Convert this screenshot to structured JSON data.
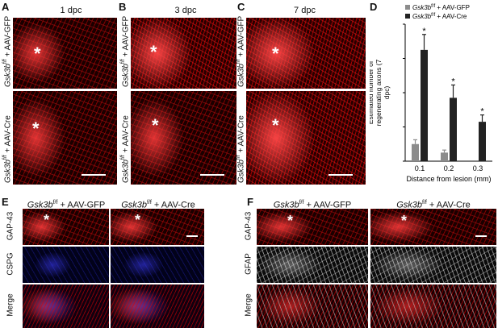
{
  "panels": {
    "A": {
      "letter": "A",
      "title": "1 dpc"
    },
    "B": {
      "letter": "B",
      "title": "3 dpc"
    },
    "C": {
      "letter": "C",
      "title": "7 dpc"
    },
    "D": {
      "letter": "D"
    },
    "E": {
      "letter": "E"
    },
    "F": {
      "letter": "F"
    }
  },
  "labels": {
    "gene": "Gsk3b",
    "sup": "f/f",
    "gfp": " + AAV-GFP",
    "cre": " + AAV-Cre",
    "gap43": "GAP-43",
    "cspg": "CSPG",
    "gfap": "GFAP",
    "merge": "Merge",
    "asterisk": "*"
  },
  "colors": {
    "gfp_bar": "#8c8c8c",
    "cre_bar": "#222222",
    "tissue_red": "#e01010",
    "cspg_blue": "#2020d0"
  },
  "chart_data": {
    "type": "bar",
    "categories": [
      "0.1",
      "0.2",
      "0.3"
    ],
    "series": [
      {
        "name": "Gsk3bf/f + AAV-GFP",
        "values": [
          100,
          50,
          0
        ],
        "errors": [
          25,
          15,
          0
        ]
      },
      {
        "name": "Gsk3bf/f + AAV-Cre",
        "values": [
          650,
          370,
          230
        ],
        "errors": [
          90,
          75,
          40
        ]
      }
    ],
    "significance": [
      "*",
      "*",
      "*"
    ],
    "xlabel": "Distance from lesion (mm)",
    "ylabel": "Estimated number of regenerating axons (7 dpc)",
    "ylim": [
      0,
      800
    ],
    "yticks": [
      0,
      200,
      400,
      600,
      800
    ],
    "legend": {
      "position": "top",
      "entries": [
        {
          "gene": "Gsk3b",
          "sup": "f/f",
          "rest": " + AAV-GFP"
        },
        {
          "gene": "Gsk3b",
          "sup": "f/f",
          "rest": " + AAV-Cre"
        }
      ]
    },
    "grid": false
  }
}
